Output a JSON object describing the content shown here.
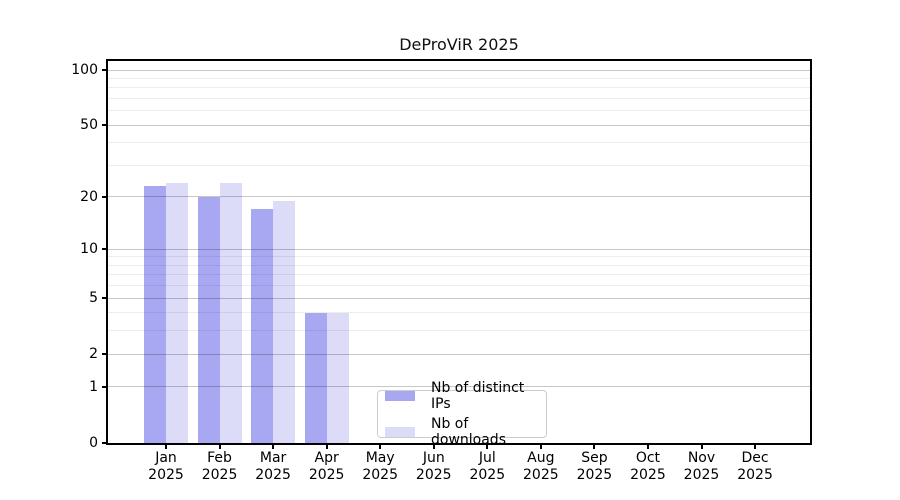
{
  "chart_data": {
    "type": "bar",
    "title": "DeProViR 2025",
    "categories": [
      "Jan",
      "Feb",
      "Mar",
      "Apr",
      "May",
      "Jun",
      "Jul",
      "Aug",
      "Sep",
      "Oct",
      "Nov",
      "Dec"
    ],
    "x_year_label": "2025",
    "series": [
      {
        "name": "Nb of distinct IPs",
        "color": "#a8a8f2",
        "values": [
          23,
          20,
          17,
          4,
          0,
          0,
          0,
          0,
          0,
          0,
          0,
          0
        ]
      },
      {
        "name": "Nb of downloads",
        "color": "#dcdcf8",
        "values": [
          24,
          24,
          19,
          4,
          0,
          0,
          0,
          0,
          0,
          0,
          0,
          0
        ]
      }
    ],
    "y_scale": "log10(value+1)",
    "y_major_ticks": [
      0,
      1,
      2,
      5,
      10,
      20,
      50,
      100
    ],
    "y_minor_gridlines": [
      3,
      4,
      6,
      7,
      8,
      9,
      30,
      40,
      60,
      70,
      80,
      90
    ],
    "y_axis_top": 112,
    "grid": true,
    "legend_position": "lower center-right inside plot",
    "background_color": "#ffffff"
  }
}
